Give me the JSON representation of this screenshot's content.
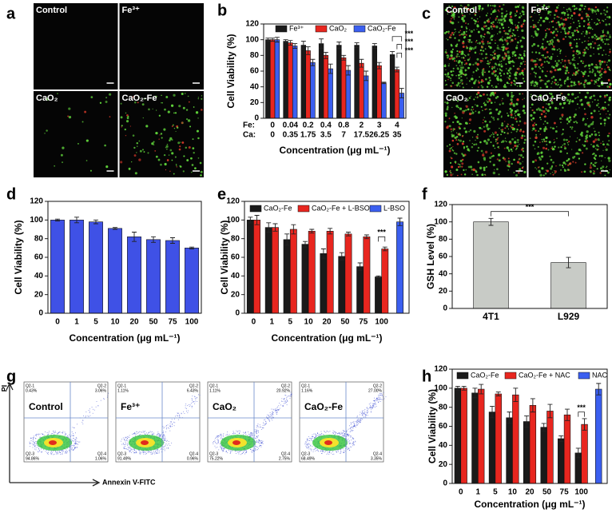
{
  "panel_labels": [
    "a",
    "b",
    "c",
    "d",
    "e",
    "f",
    "g",
    "h"
  ],
  "images_a": {
    "labels": [
      "Control",
      "Fe³⁺",
      "CaO₂",
      "CaO₂-Fe"
    ]
  },
  "images_c": {
    "labels": [
      "Control",
      "Fe³⁺",
      "CaO₂",
      "CaO₂-Fe"
    ]
  },
  "flow_g": {
    "y_label": "PI",
    "x_label": "Annexin V-FITC",
    "plots": [
      {
        "label": "Control",
        "quadrants": [
          {
            "name": "Q2-1",
            "value": "0.43%"
          },
          {
            "name": "Q2-2",
            "value": "3.06%"
          },
          {
            "name": "Q2-3",
            "value": "94.86%"
          },
          {
            "name": "Q2-4",
            "value": "1.06%"
          }
        ]
      },
      {
        "label": "Fe³⁺",
        "quadrants": [
          {
            "name": "Q2-1",
            "value": "1.11%"
          },
          {
            "name": "Q2-2",
            "value": "6.43%"
          },
          {
            "name": "Q2-3",
            "value": "91.49%"
          },
          {
            "name": "Q2-4",
            "value": "0.96%"
          }
        ]
      },
      {
        "label": "CaO₂",
        "quadrants": [
          {
            "name": "Q2-1",
            "value": "1.11%"
          },
          {
            "name": "Q2-2",
            "value": "20.92%"
          },
          {
            "name": "Q2-3",
            "value": "75.22%"
          },
          {
            "name": "Q2-4",
            "value": "2.75%"
          }
        ]
      },
      {
        "label": "CaO₂-Fe",
        "quadrants": [
          {
            "name": "Q2-1",
            "value": "1.16%"
          },
          {
            "name": "Q2-2",
            "value": "27.00%"
          },
          {
            "name": "Q2-3",
            "value": "68.49%"
          },
          {
            "name": "Q2-4",
            "value": "3.35%"
          }
        ]
      }
    ]
  },
  "chart_data": [
    {
      "type": "bar",
      "y_label": "Cell Viability (%)",
      "x_label": "Concentration (μg mL⁻¹)",
      "category_rows": [
        {
          "label": "Fe:",
          "values": [
            "0",
            "0.04",
            "0.2",
            "0.4",
            "0.8",
            "2",
            "3",
            "4"
          ]
        },
        {
          "label": "Ca:",
          "values": [
            "0",
            "0.35",
            "1.75",
            "3.5",
            "7",
            "17.5",
            "26.25",
            "35"
          ]
        }
      ],
      "series": [
        {
          "name": "Fe³⁺",
          "color": "#1a1a1a",
          "values": [
            100,
            98,
            93,
            95,
            93,
            93,
            92,
            81
          ],
          "errors": [
            2,
            2,
            5,
            6,
            4,
            3,
            3,
            4
          ]
        },
        {
          "name": "CaO₂",
          "color": "#e8261f",
          "values": [
            100,
            96,
            86,
            80,
            77,
            70,
            67,
            62
          ],
          "errors": [
            2,
            3,
            5,
            4,
            3,
            5,
            4,
            3
          ]
        },
        {
          "name": "CaO₂-Fe",
          "color": "#3b5ff0",
          "values": [
            100,
            92,
            71,
            63,
            61,
            54,
            45,
            32
          ],
          "errors": [
            3,
            3,
            4,
            6,
            6,
            6,
            1,
            6
          ]
        }
      ],
      "ylim": [
        0,
        120
      ],
      "yticks": [
        0,
        20,
        40,
        60,
        80,
        100,
        120
      ],
      "annotations": [
        "***",
        "***",
        "***"
      ]
    },
    {
      "type": "bar",
      "y_label": "Cell Viability (%)",
      "x_label": "Concentration (μg mL⁻¹)",
      "categories": [
        "0",
        "1",
        "5",
        "10",
        "20",
        "50",
        "75",
        "100"
      ],
      "color": "#3f51e6",
      "values": [
        100,
        100,
        98,
        91,
        82,
        79,
        78,
        70
      ],
      "errors": [
        1,
        3,
        2,
        1,
        5,
        3,
        3,
        1
      ],
      "ylim": [
        0,
        120
      ],
      "yticks": [
        0,
        20,
        40,
        60,
        80,
        100,
        120
      ]
    },
    {
      "type": "bar",
      "y_label": "Cell Viability (%)",
      "x_label": "Concentration (μg mL⁻¹)",
      "categories": [
        "0",
        "1",
        "5",
        "10",
        "20",
        "50",
        "75",
        "100",
        null
      ],
      "series": [
        {
          "name": "CaO₂-Fe",
          "color": "#1a1a1a",
          "values": [
            100,
            92,
            79,
            74,
            64,
            61,
            50,
            39,
            null
          ],
          "errors": [
            3,
            5,
            6,
            3,
            5,
            4,
            4,
            1,
            null
          ]
        },
        {
          "name": "CaO₂-Fe + L-BSO",
          "color": "#e8261f",
          "values": [
            100,
            92,
            90,
            88,
            88,
            85,
            82,
            69,
            null
          ],
          "errors": [
            5,
            4,
            5,
            2,
            3,
            2,
            2,
            2,
            null
          ]
        },
        {
          "name": "L-BSO",
          "color": "#3b5ff0",
          "values": [
            null,
            null,
            null,
            null,
            null,
            null,
            null,
            null,
            98
          ],
          "errors": [
            null,
            null,
            null,
            null,
            null,
            null,
            null,
            null,
            4
          ]
        }
      ],
      "ylim": [
        0,
        120
      ],
      "yticks": [
        0,
        20,
        40,
        60,
        80,
        100,
        120
      ],
      "annotations": [
        "***"
      ]
    },
    {
      "type": "bar",
      "y_label": "GSH Level (%)",
      "categories": [
        "4T1",
        "L929"
      ],
      "color": "#c8cbc6",
      "values": [
        100,
        53
      ],
      "errors": [
        4,
        6
      ],
      "ylim": [
        0,
        120
      ],
      "yticks": [
        0,
        20,
        40,
        60,
        80,
        100,
        120
      ],
      "annotations": [
        "***"
      ]
    },
    {
      "type": "bar",
      "y_label": "Cell Viability (%)",
      "x_label": "Concentration (μg mL⁻¹)",
      "categories": [
        "0",
        "1",
        "5",
        "10",
        "20",
        "50",
        "75",
        "100",
        null
      ],
      "series": [
        {
          "name": "CaO₂-Fe",
          "color": "#1a1a1a",
          "values": [
            100,
            95,
            75,
            69,
            65,
            59,
            47,
            32,
            null
          ],
          "errors": [
            2,
            5,
            6,
            6,
            6,
            4,
            3,
            5,
            null
          ]
        },
        {
          "name": "CaO₂-Fe + NAC",
          "color": "#e8261f",
          "values": [
            100,
            99,
            94,
            93,
            82,
            76,
            72,
            62,
            null
          ],
          "errors": [
            2,
            5,
            2,
            7,
            7,
            7,
            6,
            6,
            null
          ]
        },
        {
          "name": "NAC",
          "color": "#3b5ff0",
          "values": [
            null,
            null,
            null,
            null,
            null,
            null,
            null,
            null,
            99
          ],
          "errors": [
            null,
            null,
            null,
            null,
            null,
            null,
            null,
            null,
            6
          ]
        }
      ],
      "ylim": [
        0,
        120
      ],
      "yticks": [
        0,
        20,
        40,
        60,
        80,
        100,
        120
      ],
      "annotations": [
        "***"
      ]
    }
  ]
}
